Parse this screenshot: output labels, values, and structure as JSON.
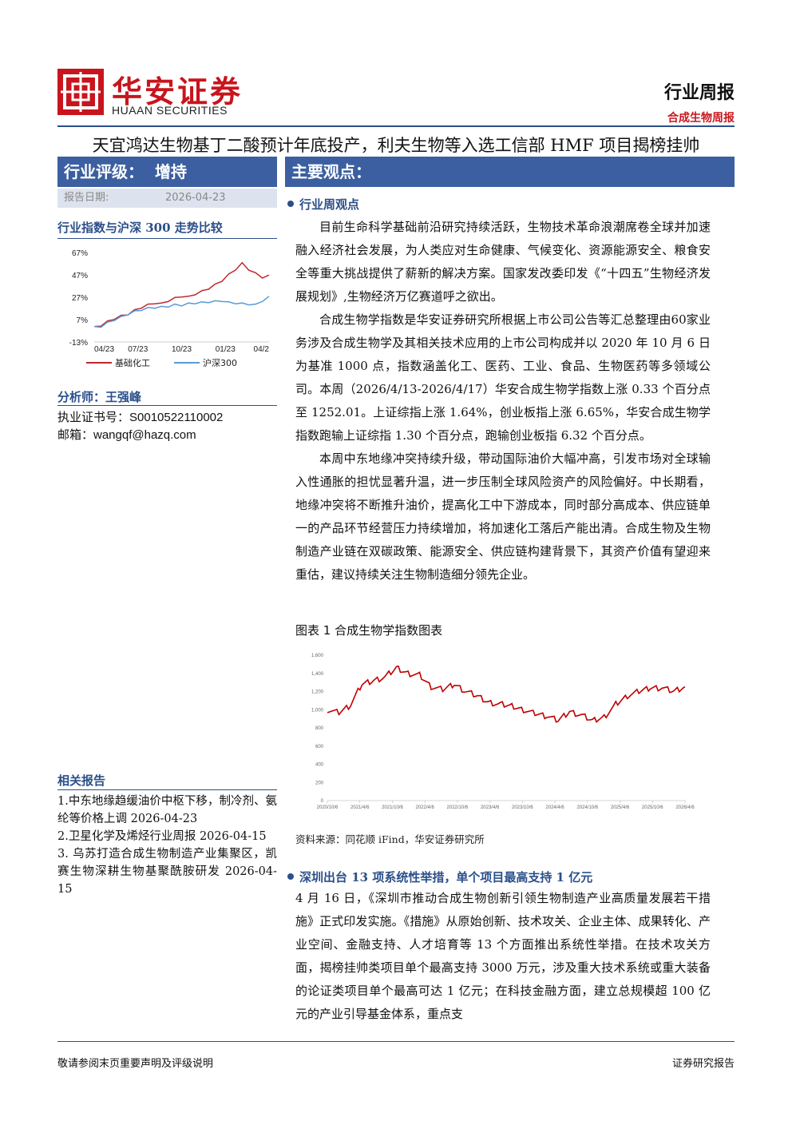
{
  "header": {
    "logo_cn": "华安证券",
    "logo_en": "HUAAN SECURITIES",
    "report_type": "行业周报",
    "report_subtitle": "合成生物周报",
    "title": "天宜鸿达生物基丁二酸预计年底投产，利夫生物等入选工信部 HMF 项目揭榜挂帅"
  },
  "sidebar": {
    "rating_label": "行业评级：",
    "rating_value": "增持",
    "date_label": "报告日期:",
    "date_value": "2026-04-23",
    "trend_title": "行业指数与沪深 300 走势比较",
    "analyst_title": "分析师：王强峰",
    "cert_line": "执业证书号：S0010522110002",
    "email_line": "邮箱：wangqf@hazq.com",
    "related_title": "相关报告",
    "related": [
      "1.中东地缘趋缓油价中枢下移，制冷剂、氨纶等价格上调 2026-04-23",
      "2.卫星化学及烯烃行业周报 2026-04-15",
      "3. 乌苏打造合成生物制造产业集聚区，凯赛生物深耕生物基聚酰胺研发 2026-04-15"
    ]
  },
  "main": {
    "section_title": "主要观点：",
    "weekly_heading": "行业周观点",
    "paragraphs": [
      "目前生命科学基础前沿研究持续活跃，生物技术革命浪潮席卷全球并加速融入经济社会发展，为人类应对生命健康、气候变化、资源能源安全、粮食安全等重大挑战提供了薪新的解决方案。国家发改委印发《“十四五”生物经济发展规划》,生物经济万亿赛道呼之欲出。",
      "合成生物学指数是华安证券研究所根据上市公司公告等汇总整理由60家业务涉及合成生物学及其相关技术应用的上市公司构成并以 2020 年 10 月 6 日为基准 1000 点，指数涵盖化工、医药、工业、食品、生物医药等多领域公司。本周（2026/4/13-2026/4/17）华安合成生物学指数上涨 0.33 个百分点至 1252.01。上证综指上涨 1.64%，创业板指上涨 6.65%，华安合成生物学指数跑输上证综指 1.30 个百分点，跑输创业板指 6.32 个百分点。",
      "本周中东地缘冲突持续升级，带动国际油价大幅冲高，引发市场对全球输入性通胀的担忧显著升温，进一步压制全球风险资产的风险偏好。中长期看，地缘冲突将不断推升油价，提高化工中下游成本，同时部分高成本、供应链单一的产品环节经营压力持续增加，将加速化工落后产能出清。合成生物及生物制造产业链在双碳政策、能源安全、供应链构建背景下，其资产价值有望迎来重估，建议持续关注生物制造细分领先企业。"
    ],
    "figure_caption": "图表 1 合成生物学指数图表",
    "source": "资料来源：同花顺 iFind，华安证券研究所",
    "sz_heading": "深圳出台 13 项系统性举措，单个项目最高支持 1 亿元",
    "sz_paragraph": "4 月 16 日，《深圳市推动合成生物创新引领生物制造产业高质量发展若干措施》正式印发实施。《措施》从原始创新、技术攻关、企业主体、成果转化、产业空间、金融支持、人才培育等 13 个方面推出系统性举措。在技术攻关方面，揭榜挂帅类项目单个最高支持 3000 万元，涉及重大技术系统或重大装备的论证类项目单个最高可达 1 亿元；在科技金融方面，建立总规模超 100 亿元的产业引导基金体系，重点支"
  },
  "footer": {
    "left": "敬请参阅末页重要声明及评级说明",
    "right": "证券研究报告"
  },
  "colors": {
    "brand_red": "#c8151d",
    "brand_blue": "#3b5fa0",
    "series_red": "#c0282d",
    "series_blue": "#5b9bd5"
  },
  "chart_data": [
    {
      "type": "line",
      "title": "行业指数与沪深 300 走势比较",
      "x_ticks": [
        "04/23",
        "07/23",
        "10/23",
        "01/23",
        "04/2"
      ],
      "y_ticks": [
        "67%",
        "47%",
        "27%",
        "7%",
        "-13%"
      ],
      "ylim": [
        -13,
        67
      ],
      "legend_position": "bottom",
      "series": [
        {
          "name": "基础化工",
          "color": "#c0282d",
          "values": [
            0,
            2,
            5,
            8,
            10,
            12,
            15,
            18,
            20,
            22,
            21,
            24,
            26,
            28,
            27,
            30,
            32,
            35,
            38,
            42,
            47,
            52,
            57,
            52,
            48,
            45,
            46
          ]
        },
        {
          "name": "沪深300",
          "color": "#5b9bd5",
          "values": [
            0,
            1,
            4,
            7,
            9,
            12,
            14,
            16,
            17,
            18,
            18,
            19,
            20,
            20,
            21,
            22,
            22,
            23,
            23,
            24,
            22,
            22,
            21,
            21,
            20,
            24,
            27
          ]
        }
      ]
    },
    {
      "type": "line",
      "title": "",
      "x_ticks": [
        "2020/10/6",
        "2021/4/6",
        "2021/10/6",
        "2022/4/6",
        "2022/10/6",
        "2023/4/6",
        "2023/10/6",
        "2024/4/6",
        "2024/10/6",
        "2025/4/6",
        "2025/10/6",
        "2026/4/6"
      ],
      "y_ticks": [
        "0",
        "200",
        "400",
        "600",
        "800",
        "1,000",
        "1,200",
        "1,400",
        "1,600"
      ],
      "ylim": [
        0,
        1600
      ],
      "series": [
        {
          "name": "",
          "color": "#c00000",
          "values": [
            1000,
            970,
            1050,
            1280,
            1320,
            1360,
            1460,
            1400,
            1380,
            1250,
            1220,
            1280,
            1200,
            1150,
            1080,
            1060,
            1040,
            1000,
            960,
            930,
            880,
            980,
            940,
            880,
            920,
            1060,
            1150,
            1200,
            1240,
            1240,
            1200,
            1252
          ]
        }
      ]
    }
  ]
}
